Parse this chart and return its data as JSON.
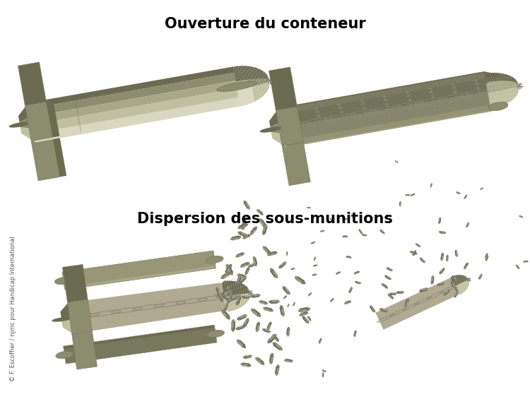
{
  "title1": "Ouverture du conteneur",
  "title2": "Dispersion des sous-munitions",
  "copyright": "© F. Escoffier / njmc pour Handicap International",
  "bg_color": "#ffffff",
  "col_dark": "#6b6b52",
  "col_mid": "#8c8c6e",
  "col_light": "#a8a888",
  "col_lighter": "#c0c0a0",
  "col_highlight": "#d8d8c0",
  "col_sub_dark": "#6a6a5a",
  "col_sub_light": "#9a9a88",
  "col_inner": "#b0aa90",
  "title_fontsize": 15,
  "copyright_fontsize": 6,
  "fig_width": 7.5,
  "fig_height": 5.72,
  "dpi": 100
}
